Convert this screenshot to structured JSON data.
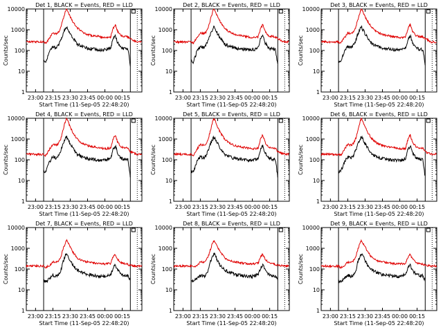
{
  "chart_data": {
    "type": "line",
    "layout": "3x3 grid",
    "yscale": "log",
    "ylim": [
      1,
      10000
    ],
    "y_tick_labels": [
      "1",
      "10",
      "100",
      "1000",
      "10000"
    ],
    "x_tick_labels": [
      "23:00",
      "23:15",
      "23:30",
      "23:45",
      "00:00",
      "00:15"
    ],
    "ylabel": "Counts/sec",
    "xlabel": "Start Time (11-Sep-05 22:48:20)",
    "legend_text": "BLACK = Events, RED = LLD",
    "series_colors": {
      "events": "#000000",
      "lld": "#e00000"
    },
    "panels": [
      {
        "id": "det1",
        "title": "Det 1",
        "profile": "A"
      },
      {
        "id": "det2",
        "title": "Det 2",
        "profile": "A"
      },
      {
        "id": "det3",
        "title": "Det 3",
        "profile": "A"
      },
      {
        "id": "det4",
        "title": "Det 4",
        "profile": "B"
      },
      {
        "id": "det5",
        "title": "Det 5",
        "profile": "B"
      },
      {
        "id": "det6",
        "title": "Det 6",
        "profile": "B"
      },
      {
        "id": "det7",
        "title": "Det 7",
        "profile": "C"
      },
      {
        "id": "det8",
        "title": "Det 8",
        "profile": "C"
      },
      {
        "id": "det9",
        "title": "Det 9",
        "profile": "C"
      }
    ],
    "time_minutes_from_start": {
      "xlim": [
        0,
        100
      ],
      "data_window": [
        15,
        90
      ],
      "dotted_line": 96,
      "flare_peak": 35,
      "secondary_peak": 77
    },
    "profiles": {
      "A": {
        "x": [
          0,
          15,
          17,
          20,
          23,
          26,
          28,
          30,
          32,
          34,
          35,
          37,
          40,
          44,
          48,
          53,
          58,
          63,
          68,
          73,
          75,
          77,
          79,
          82,
          85,
          88,
          90,
          95,
          100
        ],
        "lld": [
          260,
          260,
          230,
          400,
          700,
          650,
          780,
          1400,
          3500,
          8500,
          10500,
          5500,
          2600,
          1250,
          800,
          580,
          520,
          470,
          420,
          450,
          1100,
          1800,
          850,
          520,
          480,
          450,
          380,
          260,
          260
        ],
        "events": [
          null,
          30,
          28,
          90,
          160,
          140,
          190,
          320,
          700,
          1200,
          1350,
          820,
          420,
          210,
          160,
          130,
          120,
          110,
          110,
          130,
          350,
          520,
          240,
          130,
          120,
          110,
          20,
          null,
          null
        ]
      },
      "B": {
        "x": [
          0,
          15,
          17,
          20,
          23,
          26,
          28,
          30,
          32,
          34,
          35,
          37,
          40,
          44,
          48,
          53,
          58,
          63,
          68,
          73,
          75,
          77,
          79,
          82,
          85,
          88,
          90,
          95,
          100
        ],
        "lld": [
          190,
          180,
          160,
          320,
          550,
          500,
          620,
          1100,
          3000,
          8000,
          10200,
          5000,
          2200,
          1000,
          650,
          480,
          420,
          380,
          340,
          360,
          950,
          1600,
          700,
          420,
          380,
          360,
          240,
          190,
          190
        ],
        "events": [
          null,
          28,
          26,
          80,
          140,
          120,
          170,
          300,
          650,
          1100,
          1250,
          780,
          380,
          190,
          140,
          115,
          105,
          95,
          95,
          115,
          320,
          480,
          220,
          120,
          110,
          100,
          15,
          null,
          null
        ]
      },
      "C": {
        "x": [
          0,
          15,
          17,
          20,
          23,
          26,
          28,
          30,
          32,
          34,
          35,
          37,
          40,
          44,
          48,
          53,
          58,
          63,
          68,
          73,
          75,
          77,
          79,
          82,
          85,
          88,
          90,
          95,
          100
        ],
        "lld": [
          140,
          140,
          120,
          150,
          220,
          210,
          260,
          420,
          1000,
          2000,
          2400,
          1500,
          700,
          350,
          260,
          220,
          200,
          185,
          175,
          190,
          380,
          520,
          300,
          200,
          180,
          170,
          150,
          140,
          140
        ],
        "events": [
          null,
          28,
          25,
          35,
          50,
          45,
          55,
          90,
          250,
          480,
          560,
          330,
          160,
          90,
          70,
          55,
          50,
          45,
          45,
          55,
          110,
          160,
          90,
          55,
          50,
          48,
          30,
          null,
          null
        ]
      }
    }
  }
}
